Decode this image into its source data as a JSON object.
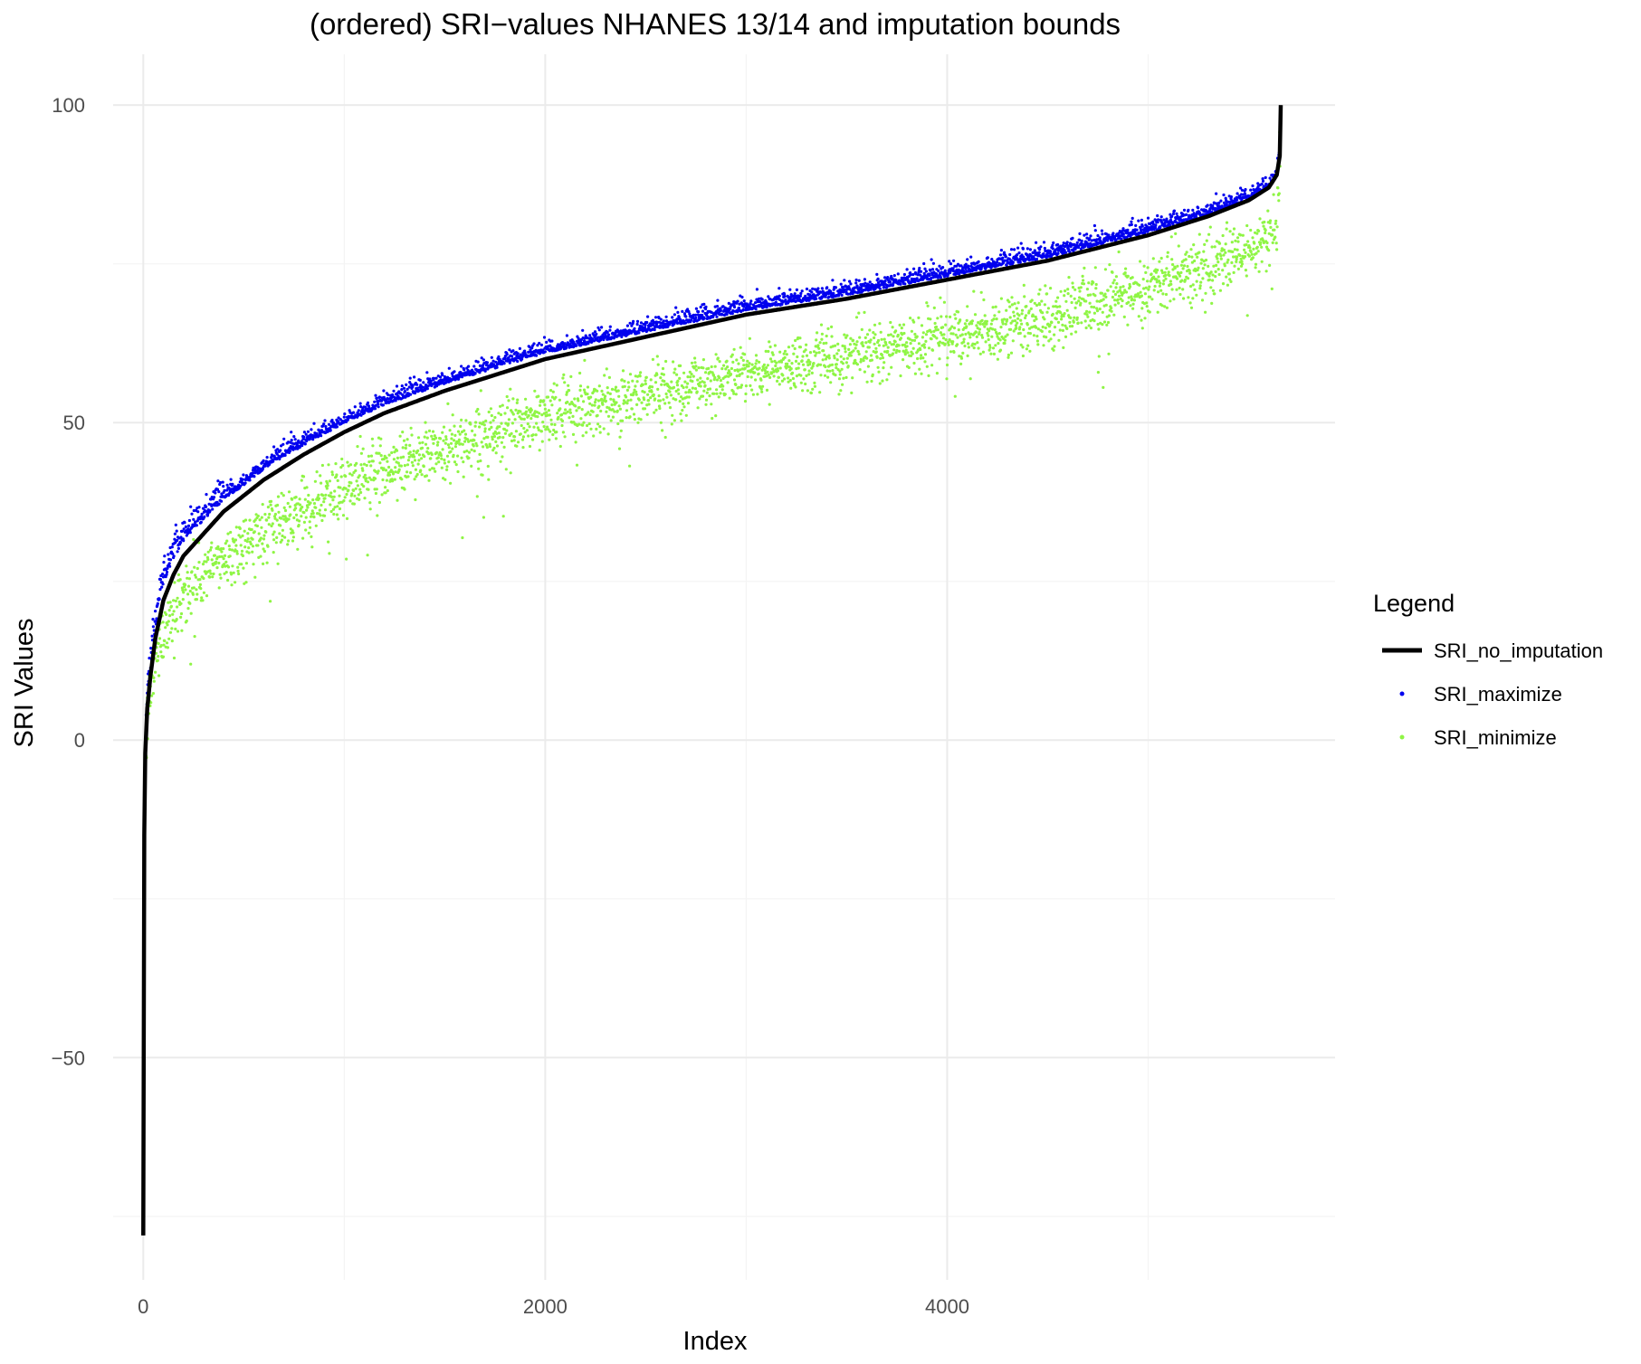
{
  "chart_data": {
    "type": "scatter",
    "title": "(ordered) SRI−values NHANES 13/14 and imputation bounds",
    "xlabel": "Index",
    "ylabel": "SRI Values",
    "xlim": [
      -150,
      5930
    ],
    "ylim": [
      -85,
      108
    ],
    "x_ticks": [
      0,
      2000,
      4000
    ],
    "x_tick_labels": [
      "0",
      "2000",
      "4000"
    ],
    "x_minor_ticks": [
      1000,
      3000,
      5000
    ],
    "y_ticks": [
      -50,
      0,
      50,
      100
    ],
    "y_tick_labels": [
      "−50",
      "0",
      "50",
      "100"
    ],
    "y_minor_ticks": [
      -75,
      -25,
      25,
      75
    ],
    "grid": true,
    "legend": {
      "title": "Legend",
      "placement": "right",
      "entries": [
        {
          "label": "SRI_no_imputation",
          "marker": "line",
          "color": "#000000"
        },
        {
          "label": "SRI_maximize",
          "marker": "point",
          "color": "#0000ee"
        },
        {
          "label": "SRI_minimize",
          "marker": "point",
          "color": "#8ff545"
        }
      ]
    },
    "n_points": 5660,
    "series": [
      {
        "name": "SRI_no_imputation",
        "kind": "line",
        "color": "#000000",
        "x": [
          0,
          2,
          5,
          10,
          20,
          35,
          60,
          100,
          150,
          200,
          300,
          400,
          500,
          600,
          800,
          1000,
          1200,
          1500,
          2000,
          2500,
          3000,
          3500,
          4000,
          4500,
          5000,
          5300,
          5500,
          5600,
          5640,
          5655,
          5660
        ],
        "y": [
          -78,
          -40,
          -15,
          -2,
          5,
          10,
          16,
          22,
          26,
          29,
          32.5,
          36,
          38.5,
          41,
          45,
          48.5,
          51.5,
          55,
          60,
          63.5,
          67,
          69.5,
          72.5,
          75.5,
          79.5,
          82.5,
          85,
          87,
          89,
          92,
          100
        ]
      },
      {
        "name": "SRI_maximize",
        "kind": "scatter",
        "color": "#0000ee",
        "offset_from_line": [
          [
            0,
            0
          ],
          [
            100,
            3
          ],
          [
            500,
            2
          ],
          [
            1500,
            1.5
          ],
          [
            3000,
            1
          ],
          [
            5000,
            0.8
          ],
          [
            5600,
            0.3
          ]
        ],
        "noise_sd": 0.9,
        "x_sample": [
          0,
          100,
          200,
          500,
          1000,
          2000,
          3000,
          4000,
          5000,
          5500,
          5660
        ],
        "y_sample": [
          -78,
          25,
          32,
          41,
          51,
          61,
          68,
          73.5,
          80,
          85,
          100
        ]
      },
      {
        "name": "SRI_minimize",
        "kind": "scatter",
        "color": "#8ff545",
        "offset_from_line": [
          [
            0,
            0
          ],
          [
            20,
            -2
          ],
          [
            100,
            -5
          ],
          [
            500,
            -8
          ],
          [
            1500,
            -9
          ],
          [
            3000,
            -9
          ],
          [
            4500,
            -9
          ],
          [
            5000,
            -8
          ],
          [
            5640,
            -8
          ],
          [
            5660,
            0
          ]
        ],
        "noise_sd": 2.4,
        "x_sample": [
          0,
          100,
          200,
          500,
          1000,
          2000,
          3000,
          4000,
          5000,
          5500,
          5660
        ],
        "y_sample": [
          -78,
          17,
          24,
          31,
          40,
          51,
          58,
          65,
          71,
          77,
          100
        ]
      }
    ]
  }
}
